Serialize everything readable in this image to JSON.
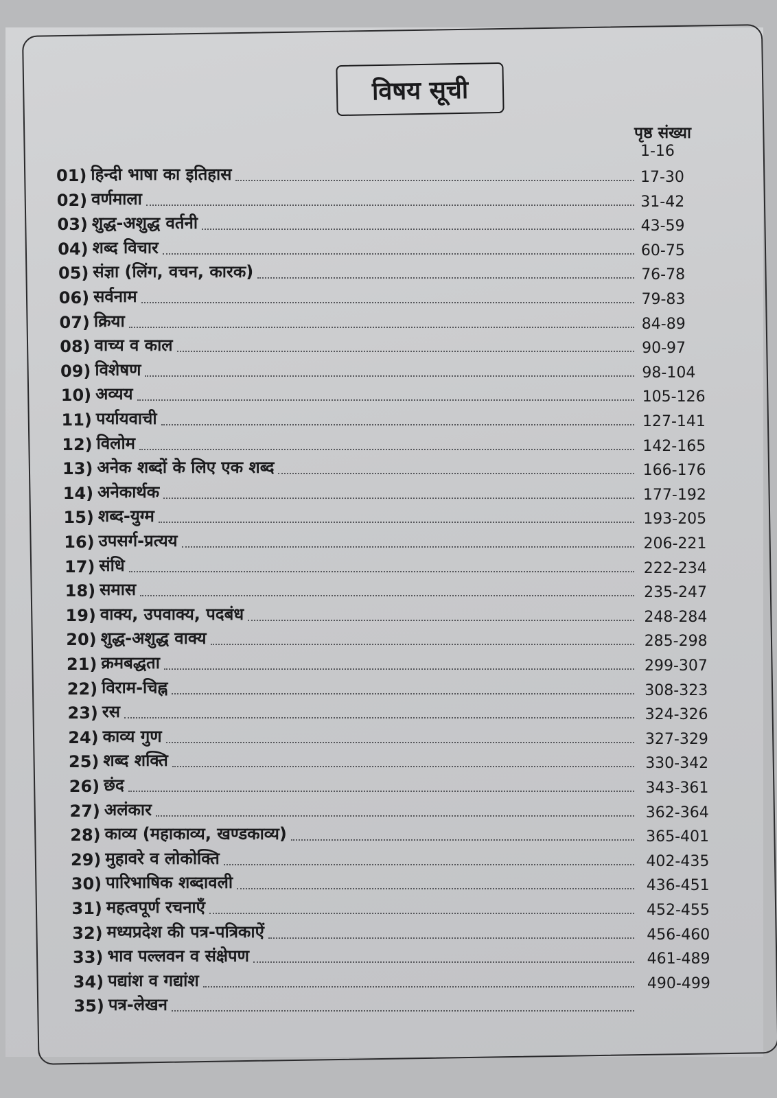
{
  "title": "विषय सूची",
  "page_header": "पृष्ठ संख्या",
  "first_range": "1-16",
  "entries": [
    {
      "num": "01)",
      "label": "हिन्दी भाषा का इतिहास",
      "pages": "17-30"
    },
    {
      "num": "02)",
      "label": "वर्णमाला",
      "pages": "31-42"
    },
    {
      "num": "03)",
      "label": "शुद्ध-अशुद्ध वर्तनी",
      "pages": "43-59"
    },
    {
      "num": "04)",
      "label": "शब्द विचार",
      "pages": "60-75"
    },
    {
      "num": "05)",
      "label": "संज्ञा (लिंग, वचन, कारक)",
      "pages": "76-78"
    },
    {
      "num": "06)",
      "label": "सर्वनाम",
      "pages": "79-83"
    },
    {
      "num": "07)",
      "label": "क्रिया",
      "pages": "84-89"
    },
    {
      "num": "08)",
      "label": "वाच्य व काल",
      "pages": "90-97"
    },
    {
      "num": "09)",
      "label": "विशेषण",
      "pages": "98-104"
    },
    {
      "num": "10)",
      "label": "अव्यय",
      "pages": "105-126"
    },
    {
      "num": "11)",
      "label": "पर्यायवाची",
      "pages": "127-141"
    },
    {
      "num": "12)",
      "label": "विलोम",
      "pages": "142-165"
    },
    {
      "num": "13)",
      "label": "अनेक शब्दों के लिए एक शब्द",
      "pages": "166-176"
    },
    {
      "num": "14)",
      "label": "अनेकार्थक",
      "pages": "177-192"
    },
    {
      "num": "15)",
      "label": "शब्द-युग्म",
      "pages": "193-205"
    },
    {
      "num": "16)",
      "label": "उपसर्ग-प्रत्यय",
      "pages": "206-221"
    },
    {
      "num": "17)",
      "label": "संधि",
      "pages": "222-234"
    },
    {
      "num": "18)",
      "label": "समास",
      "pages": "235-247"
    },
    {
      "num": "19)",
      "label": "वाक्य, उपवाक्य, पदबंध",
      "pages": "248-284"
    },
    {
      "num": "20)",
      "label": "शुद्ध-अशुद्ध वाक्य",
      "pages": "285-298"
    },
    {
      "num": "21)",
      "label": "क्रमबद्धता",
      "pages": "299-307"
    },
    {
      "num": "22)",
      "label": "विराम-चिह्न",
      "pages": "308-323"
    },
    {
      "num": "23)",
      "label": "रस",
      "pages": "324-326"
    },
    {
      "num": "24)",
      "label": "काव्य गुण",
      "pages": "327-329"
    },
    {
      "num": "25)",
      "label": "शब्द शक्ति",
      "pages": "330-342"
    },
    {
      "num": "26)",
      "label": "छंद",
      "pages": "343-361"
    },
    {
      "num": "27)",
      "label": "अलंकार",
      "pages": "362-364"
    },
    {
      "num": "28)",
      "label": "काव्य (महाकाव्य, खण्डकाव्य)",
      "pages": "365-401"
    },
    {
      "num": "29)",
      "label": "मुहावरे व लोकोक्ति",
      "pages": "402-435"
    },
    {
      "num": "30)",
      "label": "पारिभाषिक शब्दावली",
      "pages": "436-451"
    },
    {
      "num": "31)",
      "label": "महत्वपूर्ण रचनाएँ",
      "pages": "452-455"
    },
    {
      "num": "32)",
      "label": "मध्यप्रदेश की पत्र-पत्रिकाऐं",
      "pages": "456-460"
    },
    {
      "num": "33)",
      "label": "भाव पल्लवन व संक्षेपण",
      "pages": "461-489"
    },
    {
      "num": "34)",
      "label": "पद्यांश व गद्यांश",
      "pages": "490-499"
    },
    {
      "num": "35)",
      "label": "पत्र-लेखन",
      "pages": ""
    }
  ]
}
